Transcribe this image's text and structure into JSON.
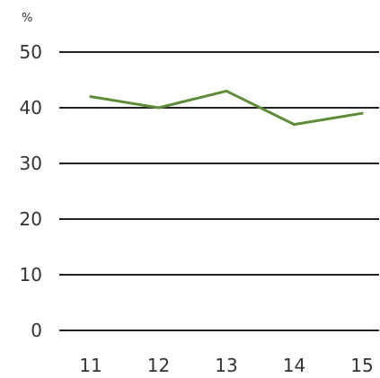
{
  "chart_data": {
    "type": "line",
    "unit": "%",
    "x": [
      "11",
      "12",
      "13",
      "14",
      "15"
    ],
    "series": [
      {
        "values": [
          42,
          40,
          43,
          37,
          39
        ]
      }
    ],
    "yticks": [
      "50",
      "40",
      "30",
      "20",
      "10",
      "0"
    ],
    "ylim": [
      0,
      50
    ],
    "grid": true,
    "legend": "none",
    "colors": {
      "line": "#5e8c3a",
      "grid": "#222222",
      "text": "#333333"
    }
  }
}
